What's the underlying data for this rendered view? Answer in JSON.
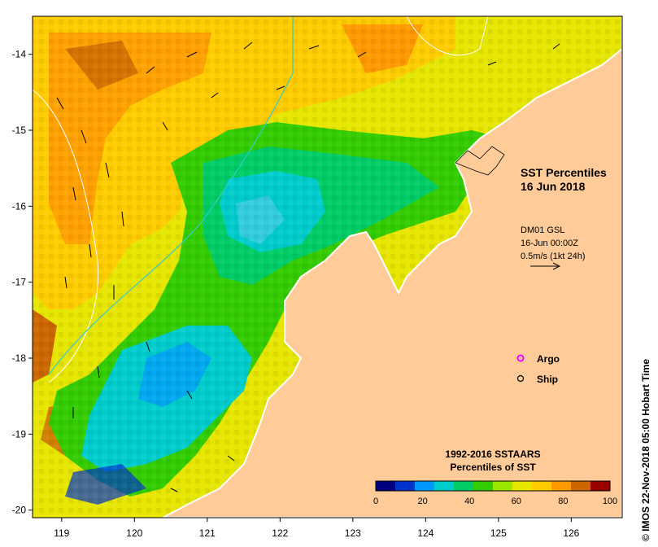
{
  "map": {
    "title_line1": "SST Percentiles",
    "title_line2": "16 Jun 2018",
    "current_source": "DM01 GSL",
    "current_time": "16-Jun 00:00Z",
    "current_scale": "0.5m/s (1kt 24h)",
    "lon_ticks": [
      "119",
      "120",
      "121",
      "122",
      "123",
      "124",
      "125",
      "126"
    ],
    "lat_ticks": [
      "-14",
      "-15",
      "-16",
      "-17",
      "-18",
      "-19",
      "-20"
    ],
    "lon_range": [
      118.6,
      126.7
    ],
    "lat_range": [
      -20.1,
      -13.5
    ],
    "legend": [
      {
        "label": "Argo",
        "marker": "circle",
        "color": "#ff00ff"
      },
      {
        "label": "Ship",
        "marker": "circle",
        "color": "#000000"
      }
    ],
    "colorbar": {
      "title_line1": "1992-2016 SSTAARS",
      "title_line2": "Percentiles of SST",
      "ticks": [
        "0",
        "20",
        "40",
        "60",
        "80",
        "100"
      ],
      "colors": [
        "#00007f",
        "#0033cc",
        "#0099ff",
        "#00cccc",
        "#00cc66",
        "#33cc00",
        "#99e600",
        "#e6e600",
        "#ffcc00",
        "#ff9900",
        "#cc6600",
        "#990000"
      ]
    },
    "land_color": "#ffcc99",
    "credit": "© IMOS 22-Nov-2018 05:00 Hobart Time"
  }
}
